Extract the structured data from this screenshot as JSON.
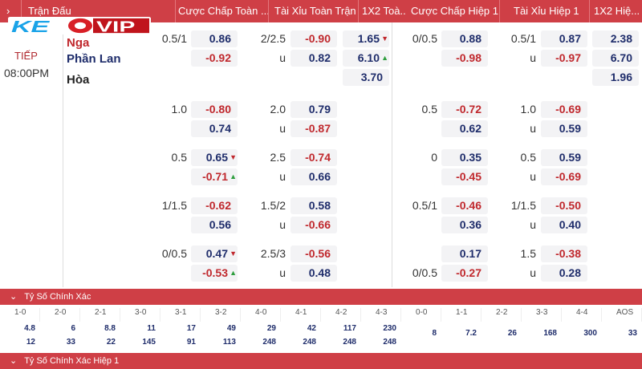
{
  "header": {
    "expand": "›",
    "match": "Trận Đấu",
    "ft_hcap": "Cược Chấp Toàn ...",
    "ft_ou": "Tài Xỉu Toàn Trận",
    "ft_1x2": "1X2 Toà...",
    "h1_hcap": "Cược Chấp Hiệp 1",
    "h1_ou": "Tài Xỉu Hiệp 1",
    "h1_1x2": "1X2 Hiệ..."
  },
  "logo": "KEOVIP",
  "match": {
    "status": "TIẾP",
    "time": "08:00PM",
    "home": "Nga",
    "away": "Phần Lan",
    "draw": "Hòa"
  },
  "colors": {
    "accent": "#cf3f46",
    "positive": "#1f2d6b",
    "negative": "#c0282d",
    "up": "#2e9e3e"
  },
  "groups": [
    {
      "ft_hcap": [
        "0.5/1",
        ""
      ],
      "ft_hcap_odds": [
        "0.86",
        "-0.92"
      ],
      "ft_ou": [
        "2/2.5",
        "u"
      ],
      "ft_ou_odds": [
        "-0.90",
        "0.82"
      ],
      "ft_1x2": [
        "1.65",
        "6.10",
        "3.70"
      ],
      "ft_1x2_arrows": [
        "down",
        "up",
        ""
      ],
      "h1_hcap": [
        "0/0.5",
        ""
      ],
      "h1_hcap_odds": [
        "0.88",
        "-0.98"
      ],
      "h1_ou": [
        "0.5/1",
        "u"
      ],
      "h1_ou_odds": [
        "0.87",
        "-0.97"
      ],
      "h1_1x2": [
        "2.38",
        "6.70",
        "1.96"
      ]
    },
    {
      "ft_hcap": [
        "1.0",
        ""
      ],
      "ft_hcap_odds": [
        "-0.80",
        "0.74"
      ],
      "ft_ou": [
        "2.0",
        "u"
      ],
      "ft_ou_odds": [
        "0.79",
        "-0.87"
      ],
      "h1_hcap": [
        "0.5",
        ""
      ],
      "h1_hcap_odds": [
        "-0.72",
        "0.62"
      ],
      "h1_ou": [
        "1.0",
        "u"
      ],
      "h1_ou_odds": [
        "-0.69",
        "0.59"
      ]
    },
    {
      "ft_hcap": [
        "0.5",
        ""
      ],
      "ft_hcap_odds": [
        "0.65",
        "-0.71"
      ],
      "ft_hcap_arrows": [
        "down",
        "up"
      ],
      "ft_ou": [
        "2.5",
        "u"
      ],
      "ft_ou_odds": [
        "-0.74",
        "0.66"
      ],
      "h1_hcap": [
        "0",
        ""
      ],
      "h1_hcap_odds": [
        "0.35",
        "-0.45"
      ],
      "h1_ou": [
        "0.5",
        "u"
      ],
      "h1_ou_odds": [
        "0.59",
        "-0.69"
      ]
    },
    {
      "ft_hcap": [
        "1/1.5",
        ""
      ],
      "ft_hcap_odds": [
        "-0.62",
        "0.56"
      ],
      "ft_ou": [
        "1.5/2",
        "u"
      ],
      "ft_ou_odds": [
        "0.58",
        "-0.66"
      ],
      "h1_hcap": [
        "0.5/1",
        ""
      ],
      "h1_hcap_odds": [
        "-0.46",
        "0.36"
      ],
      "h1_ou": [
        "1/1.5",
        "u"
      ],
      "h1_ou_odds": [
        "-0.50",
        "0.40"
      ]
    },
    {
      "ft_hcap": [
        "0/0.5",
        ""
      ],
      "ft_hcap_odds": [
        "0.47",
        "-0.53"
      ],
      "ft_hcap_arrows": [
        "down",
        "up"
      ],
      "ft_ou": [
        "2.5/3",
        "u"
      ],
      "ft_ou_odds": [
        "-0.56",
        "0.48"
      ],
      "h1_hcap": [
        "",
        "0/0.5"
      ],
      "h1_hcap_odds": [
        "0.17",
        "-0.27"
      ],
      "h1_ou": [
        "1.5",
        "u"
      ],
      "h1_ou_odds": [
        "-0.38",
        "0.28"
      ]
    }
  ],
  "correct_score": {
    "title": "Tỷ Số Chính Xác",
    "scores": [
      "1-0",
      "2-0",
      "2-1",
      "3-0",
      "3-1",
      "3-2",
      "4-0",
      "4-1",
      "4-2",
      "4-3",
      "0-0",
      "1-1",
      "2-2",
      "3-3",
      "4-4",
      "AOS"
    ],
    "home_odds": [
      "4.8",
      "6",
      "8.8",
      "11",
      "17",
      "49",
      "29",
      "42",
      "117",
      "230",
      "8",
      "7.2",
      "26",
      "168",
      "300",
      "33"
    ],
    "away_odds": [
      "12",
      "33",
      "22",
      "145",
      "91",
      "113",
      "248",
      "248",
      "248",
      "248",
      "",
      "",
      "",
      "",
      "",
      ""
    ]
  },
  "correct_score_h1": {
    "title": "Tỷ Số Chính Xác Hiệp 1"
  }
}
